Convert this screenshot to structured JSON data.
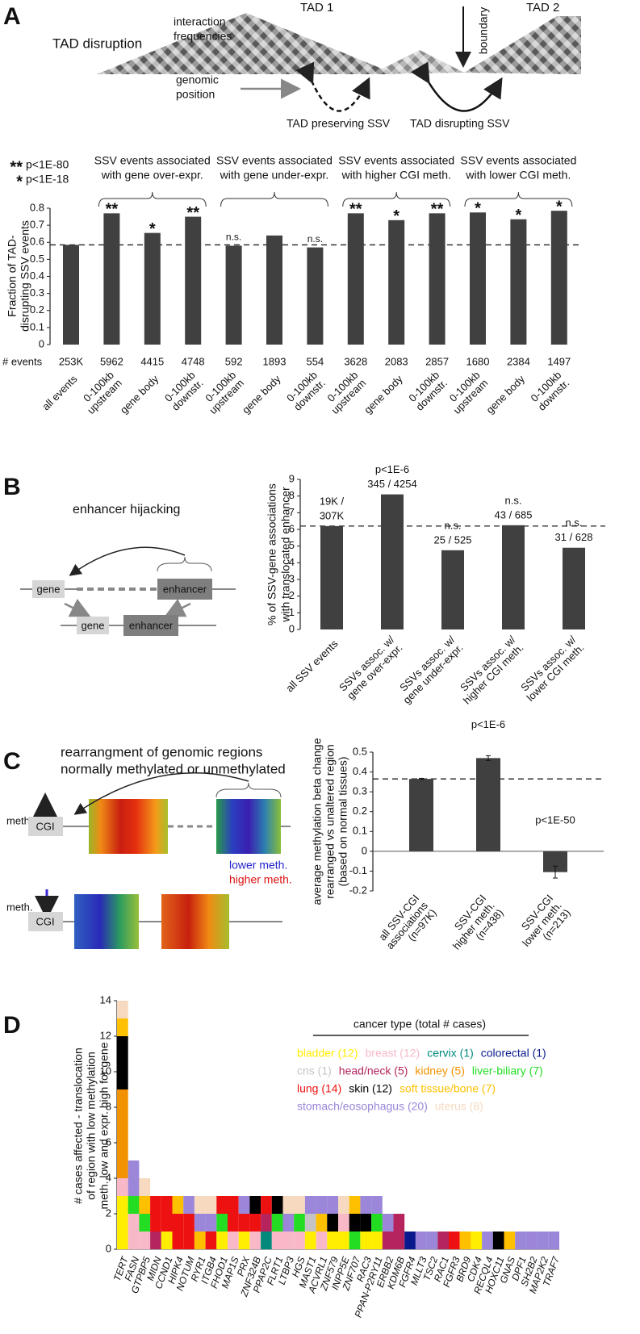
{
  "diagram_a": {
    "label": "A",
    "title": "TAD disruption",
    "tad1": "TAD 1",
    "tad2": "TAD 2",
    "boundary": "boundary",
    "interaction_label": [
      "interaction",
      "frequencies"
    ],
    "position_label": [
      "genomic",
      "position"
    ],
    "preserving": "TAD preserving SSV",
    "disrupting": "TAD disrupting SSV"
  },
  "diagram_b": {
    "label": "B",
    "title": "enhancer hijacking",
    "gene_top": "gene",
    "enhancer_top": "enhancer",
    "gene_bottom": "gene",
    "enhancer_bottom": "enhancer"
  },
  "diagram_c": {
    "label": "C",
    "title": [
      "rearrangment of genomic regions",
      "normally methylated or unmethylated"
    ],
    "meth_top": "meth.",
    "cgi_top": "CGI",
    "lower": "lower meth.",
    "higher": "higher meth.",
    "meth_bottom": "meth.",
    "cgi_bottom": "CGI"
  },
  "diagram_d": {
    "label": "D"
  },
  "chart_data": [
    {
      "type": "bar",
      "y_label": [
        "Fraction of TAD-",
        "disrupting SSV events"
      ],
      "categories": [
        [
          "all events"
        ],
        [
          "0-100kb",
          "upstream"
        ],
        [
          "gene body"
        ],
        [
          "0-100kb",
          "downstr."
        ],
        [
          "0-100kb",
          "upstream"
        ],
        [
          "gene body"
        ],
        [
          "0-100kb",
          "downstr."
        ],
        [
          "0-100kb",
          "upstream"
        ],
        [
          "gene body"
        ],
        [
          "0-100kb",
          "downstr."
        ],
        [
          "0-100kb",
          "upstream"
        ],
        [
          "gene body"
        ],
        [
          "0-100kb",
          "downstr."
        ]
      ],
      "values": [
        0.585,
        0.77,
        0.655,
        0.75,
        0.58,
        0.64,
        0.57,
        0.77,
        0.73,
        0.77,
        0.775,
        0.735,
        0.785
      ],
      "events_label": "# events",
      "events": [
        "253K",
        "5962",
        "4415",
        "4748",
        "592",
        "1893",
        "554",
        "3628",
        "2083",
        "2857",
        "1680",
        "2384",
        "1497"
      ],
      "significance": [
        null,
        "**",
        "*",
        "**",
        "n.s.",
        null,
        "n.s.",
        "**",
        "*",
        "**",
        "*",
        "*",
        "*"
      ],
      "significance_legend": [
        {
          "symbol": "**",
          "label": "p<1E-80"
        },
        {
          "symbol": "*",
          "label": "p<1E-18"
        }
      ],
      "groups": [
        [
          "SSV events associated",
          "with gene over-expr."
        ],
        [
          "SSV events associated",
          "with gene under-expr."
        ],
        [
          "SSV events associated",
          "with higher CGI meth."
        ],
        [
          "SSV events associated",
          "with lower CGI meth."
        ]
      ],
      "reference_line": 0.585,
      "color": "#404040",
      "ylim": [
        0,
        0.8
      ],
      "yticks": [
        0,
        0.1,
        0.2,
        0.3,
        0.4,
        0.5,
        0.6,
        0.7,
        0.8
      ]
    },
    {
      "type": "bar",
      "y_label": [
        "% of SSV-gene associations",
        "with translocated enhancer"
      ],
      "categories": [
        [
          "all SSV events"
        ],
        [
          "SSVs assoc. w/",
          "gene over-expr."
        ],
        [
          "SSVs assoc. w/",
          "gene under-expr."
        ],
        [
          "SSVs assoc. w/",
          "higher CGI meth."
        ],
        [
          "SSVs assoc. w/",
          "lower CGI meth."
        ]
      ],
      "values": [
        6.2,
        8.1,
        4.75,
        6.25,
        4.9
      ],
      "annotations": [
        [
          "19K /",
          "307K"
        ],
        [
          "p<1E-6",
          "345 / 4254"
        ],
        [
          "n.s.",
          "25 / 525"
        ],
        [
          "n.s.",
          "43 / 685"
        ],
        [
          "n.s.",
          "31 / 628"
        ]
      ],
      "reference_line": 6.2,
      "color": "#404040",
      "ylim": [
        0,
        9
      ],
      "yticks": [
        0,
        1,
        2,
        3,
        4,
        5,
        6,
        7,
        8,
        9
      ]
    },
    {
      "type": "bar",
      "y_label": [
        "average methylation beta change",
        "rearranged vs unaltered region",
        "(based on normal tissues)"
      ],
      "categories": [
        [
          "all SSV-CGI",
          "associations",
          "(n=97K)"
        ],
        [
          "SSV-CGI",
          "higher meth.",
          "(n=438)"
        ],
        [
          "SSV-CGI",
          "lower meth.",
          "(n=213)"
        ]
      ],
      "values": [
        0.365,
        0.47,
        -0.105
      ],
      "errors": [
        0.003,
        0.012,
        0.03
      ],
      "annotations": [
        null,
        "p<1E-6",
        "p<1E-50"
      ],
      "reference_line": 0.365,
      "color": "#404040",
      "ylim": [
        -0.2,
        0.5
      ],
      "yticks": [
        -0.2,
        -0.1,
        0,
        0.1,
        0.2,
        0.3,
        0.4,
        0.5
      ]
    },
    {
      "type": "stacked_bar",
      "y_label": [
        "# cases affected - translocation",
        "of region with low methylation",
        "meth. low and expr. high for gene"
      ],
      "legend_title": "cancer type (total # cases)",
      "categories": [
        "TERT",
        "FASN",
        "GTPBP5",
        "MIDN",
        "CCND1",
        "HIPK4",
        "NOTUM",
        "RYR1",
        "ITGB4",
        "FHOD1",
        "MAP1S",
        "PRX",
        "ZNF324B",
        "PPAP2C",
        "FLRT1",
        "LTBP3",
        "HGS",
        "MAST1",
        "ACVRL1",
        "ZNF579",
        "INPP5E",
        "ZNF707",
        "RAC3",
        "PPAN-P2RY11",
        "ERBB2",
        "KDM6B",
        "FGFR4",
        "MLLT3",
        "TSC2",
        "RAC1",
        "FGFR3",
        "BRD9",
        "CDK4",
        "RECQL4",
        "HOXC11",
        "GNAS",
        "DPF1",
        "SH2B2",
        "MAP2K2",
        "TRAF7"
      ],
      "series": [
        {
          "name": "bladder (12)",
          "color": "#ffee00",
          "values": [
            3,
            0,
            0,
            0,
            1,
            0,
            0,
            0,
            0,
            1,
            0,
            1,
            0,
            0,
            0,
            0,
            0,
            1,
            0,
            1,
            1,
            0,
            1,
            1,
            0,
            0,
            0,
            0,
            0,
            0,
            0,
            0,
            1,
            0,
            0,
            0,
            0,
            0,
            0,
            0
          ]
        },
        {
          "name": "breast (12)",
          "color": "#f9b8c8",
          "values": [
            1,
            2,
            1,
            0,
            0,
            0,
            0,
            0,
            0,
            0,
            1,
            0,
            1,
            0,
            1,
            1,
            1,
            0,
            1,
            0,
            1,
            0,
            0,
            0,
            0,
            0,
            0,
            0,
            0,
            0,
            0,
            0,
            0,
            0,
            0,
            0,
            0,
            0,
            0,
            0
          ]
        },
        {
          "name": "cervix (1)",
          "color": "#00897b",
          "values": [
            0,
            0,
            0,
            0,
            0,
            0,
            0,
            0,
            0,
            0,
            0,
            0,
            0,
            1,
            0,
            0,
            0,
            0,
            0,
            0,
            0,
            0,
            0,
            0,
            0,
            0,
            0,
            0,
            0,
            0,
            0,
            0,
            0,
            0,
            0,
            0,
            0,
            0,
            0,
            0
          ]
        },
        {
          "name": "colorectal (1)",
          "color": "#0a1a8c",
          "values": [
            0,
            0,
            0,
            0,
            0,
            0,
            0,
            0,
            0,
            0,
            0,
            0,
            0,
            0,
            0,
            0,
            0,
            0,
            0,
            0,
            0,
            0,
            0,
            0,
            0,
            0,
            1,
            0,
            0,
            0,
            0,
            0,
            0,
            0,
            0,
            0,
            0,
            0,
            0,
            0
          ]
        },
        {
          "name": "cns (1)",
          "color": "#c4c4c4",
          "values": [
            0,
            0,
            0,
            0,
            0,
            0,
            0,
            0,
            0,
            0,
            0,
            0,
            0,
            0,
            0,
            0,
            0,
            1,
            0,
            0,
            0,
            0,
            0,
            0,
            0,
            0,
            0,
            0,
            0,
            0,
            0,
            0,
            0,
            0,
            0,
            0,
            0,
            0,
            0,
            0
          ]
        },
        {
          "name": "head/neck (5)",
          "color": "#b5245c",
          "values": [
            0,
            0,
            0,
            1,
            0,
            0,
            0,
            0,
            0,
            0,
            0,
            0,
            0,
            1,
            0,
            0,
            0,
            0,
            0,
            0,
            0,
            0,
            0,
            0,
            1,
            2,
            0,
            0,
            0,
            1,
            0,
            0,
            0,
            0,
            0,
            0,
            0,
            0,
            0,
            0
          ]
        },
        {
          "name": "kidney (5)",
          "color": "#f39200",
          "values": [
            5,
            0,
            0,
            0,
            0,
            0,
            0,
            0,
            0,
            0,
            0,
            0,
            0,
            0,
            0,
            0,
            0,
            0,
            0,
            0,
            0,
            0,
            0,
            0,
            0,
            0,
            0,
            0,
            0,
            0,
            0,
            0,
            0,
            0,
            0,
            0,
            0,
            0,
            0,
            0
          ]
        },
        {
          "name": "liver-biliary (7)",
          "color": "#22dd22",
          "values": [
            0,
            1,
            1,
            0,
            0,
            0,
            0,
            0,
            0,
            1,
            0,
            0,
            0,
            0,
            1,
            0,
            1,
            0,
            0,
            0,
            0,
            1,
            0,
            1,
            0,
            0,
            0,
            0,
            0,
            0,
            0,
            0,
            0,
            0,
            0,
            0,
            0,
            0,
            0,
            0
          ]
        },
        {
          "name": "lung (14)",
          "color": "#ee1111",
          "values": [
            0,
            0,
            0,
            2,
            2,
            2,
            2,
            0,
            1,
            1,
            2,
            1,
            1,
            1,
            0,
            0,
            0,
            0,
            0,
            0,
            0,
            0,
            0,
            0,
            0,
            0,
            0,
            0,
            0,
            0,
            1,
            0,
            0,
            0,
            0,
            0,
            0,
            0,
            0,
            0
          ]
        },
        {
          "name": "skin (12)",
          "color": "#000000",
          "values": [
            3,
            0,
            0,
            0,
            0,
            0,
            0,
            0,
            0,
            0,
            0,
            0,
            1,
            0,
            1,
            0,
            0,
            0,
            0,
            1,
            0,
            1,
            1,
            0,
            0,
            0,
            0,
            0,
            0,
            0,
            0,
            0,
            0,
            0,
            1,
            0,
            0,
            0,
            0,
            0
          ]
        },
        {
          "name": "soft tissue/bone (7)",
          "color": "#ffc000",
          "values": [
            1,
            0,
            1,
            0,
            0,
            1,
            0,
            1,
            0,
            0,
            0,
            0,
            0,
            0,
            0,
            0,
            0,
            0,
            1,
            0,
            0,
            1,
            0,
            0,
            0,
            0,
            0,
            0,
            0,
            0,
            0,
            1,
            0,
            0,
            0,
            1,
            0,
            0,
            0,
            0
          ]
        },
        {
          "name": "stomach/eosophagus (20)",
          "color": "#9b86d9",
          "values": [
            0,
            2,
            0,
            0,
            0,
            0,
            1,
            1,
            1,
            0,
            0,
            1,
            0,
            0,
            0,
            1,
            0,
            1,
            1,
            1,
            0,
            0,
            1,
            1,
            1,
            0,
            0,
            1,
            1,
            0,
            0,
            0,
            0,
            1,
            0,
            0,
            1,
            1,
            1,
            1
          ]
        },
        {
          "name": "uterus (8)",
          "color": "#f6d9bf",
          "values": [
            1,
            0,
            1,
            0,
            0,
            0,
            0,
            1,
            1,
            0,
            0,
            0,
            0,
            0,
            0,
            1,
            1,
            0,
            0,
            0,
            1,
            0,
            0,
            0,
            0,
            0,
            0,
            0,
            0,
            0,
            0,
            0,
            0,
            0,
            0,
            0,
            0,
            0,
            0,
            0
          ]
        }
      ],
      "ylim": [
        0,
        14
      ],
      "yticks": [
        0,
        2,
        4,
        6,
        8,
        10,
        12,
        14
      ]
    }
  ]
}
